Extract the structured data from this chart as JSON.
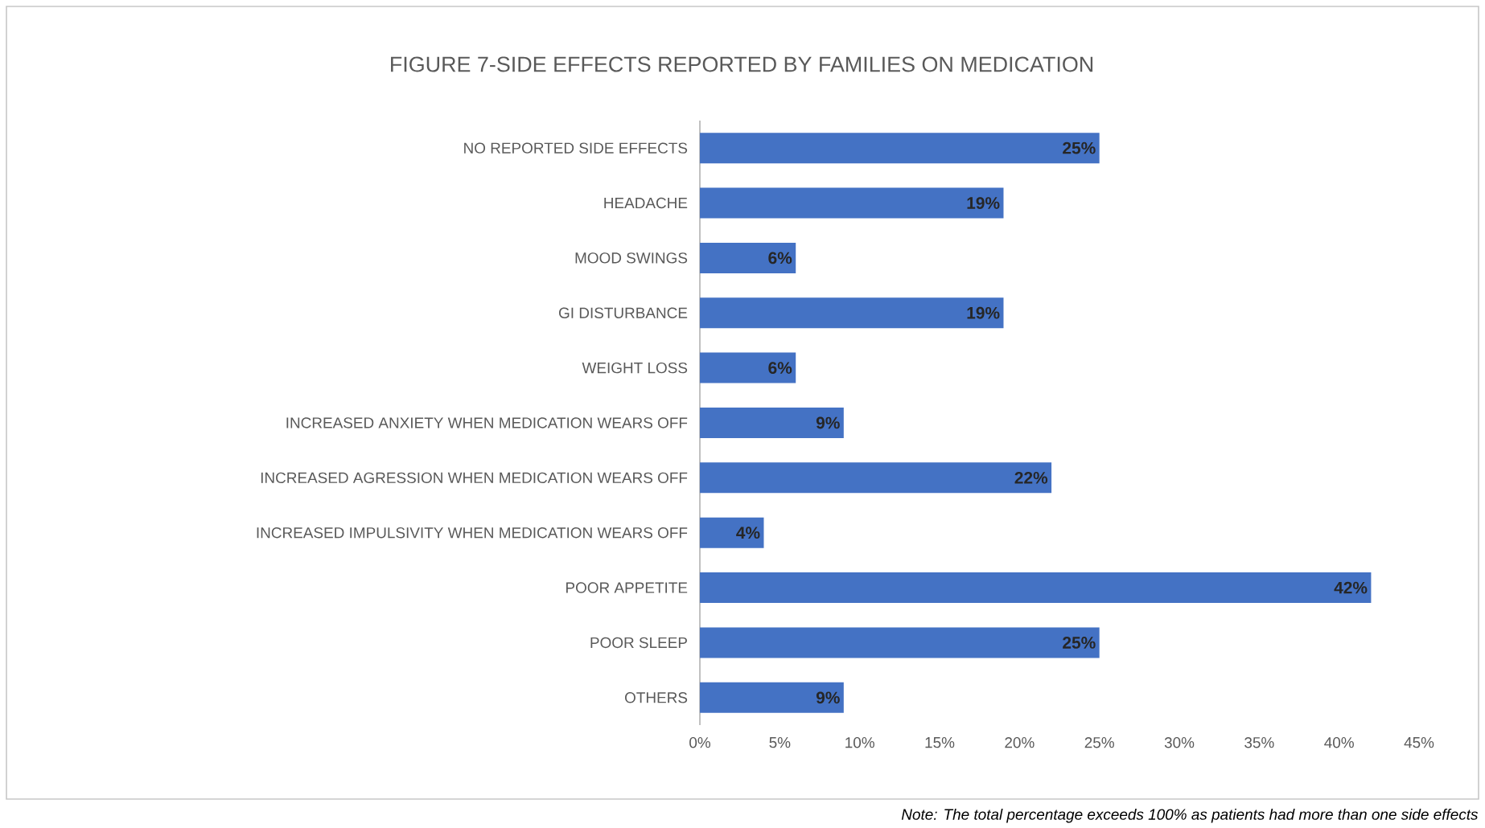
{
  "chart_data": {
    "type": "bar",
    "orientation": "horizontal",
    "title": "FIGURE 7-SIDE EFFECTS REPORTED BY FAMILIES ON MEDICATION",
    "categories": [
      "NO REPORTED SIDE EFFECTS",
      "HEADACHE",
      "MOOD SWINGS",
      "GI DISTURBANCE",
      "WEIGHT LOSS",
      "INCREASED ANXIETY WHEN MEDICATION WEARS OFF",
      "INCREASED AGRESSION WHEN MEDICATION WEARS OFF",
      "INCREASED IMPULSIVITY WHEN MEDICATION WEARS OFF",
      "POOR APPETITE",
      "POOR SLEEP",
      "OTHERS"
    ],
    "values": [
      25,
      19,
      6,
      19,
      6,
      9,
      22,
      4,
      42,
      25,
      9
    ],
    "value_labels": [
      "25%",
      "19%",
      "6%",
      "19%",
      "6%",
      "9%",
      "22%",
      "4%",
      "42%",
      "25%",
      "9%"
    ],
    "color": "#4472c4",
    "xlim": [
      0,
      45
    ],
    "xticks": [
      {
        "value": 0,
        "label": "0%"
      },
      {
        "value": 5,
        "label": "5%"
      },
      {
        "value": 10,
        "label": "10%"
      },
      {
        "value": 15,
        "label": "15%"
      },
      {
        "value": 20,
        "label": "20%"
      },
      {
        "value": 25,
        "label": "25%"
      },
      {
        "value": 30,
        "label": "30%"
      },
      {
        "value": 35,
        "label": "35%"
      },
      {
        "value": 40,
        "label": "40%"
      },
      {
        "value": 45,
        "label": "45%"
      }
    ],
    "annotations": [
      "Note: The total percentage exceeds 100% as patients had more than one side effects"
    ]
  }
}
